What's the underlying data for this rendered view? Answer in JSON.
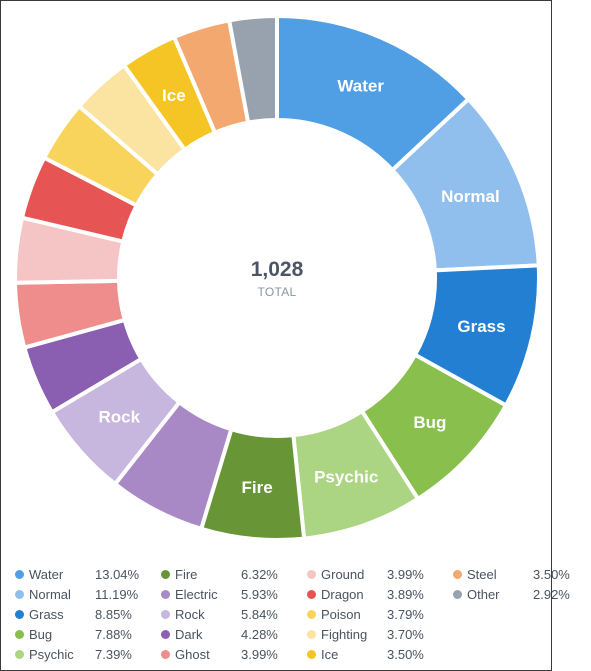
{
  "chart_data": {
    "type": "pie",
    "total_value": "1,028",
    "total_label": "TOTAL",
    "slices": [
      {
        "name": "Water",
        "percent": "13.04%",
        "value": 13.04,
        "color": "#509ee3",
        "show_label": true
      },
      {
        "name": "Normal",
        "percent": "11.19%",
        "value": 11.19,
        "color": "#90bfee",
        "show_label": true
      },
      {
        "name": "Grass",
        "percent": "8.85%",
        "value": 8.85,
        "color": "#227fd2",
        "show_label": true
      },
      {
        "name": "Bug",
        "percent": "7.88%",
        "value": 7.88,
        "color": "#88bf4d",
        "show_label": true
      },
      {
        "name": "Psychic",
        "percent": "7.39%",
        "value": 7.39,
        "color": "#abd582",
        "show_label": true
      },
      {
        "name": "Fire",
        "percent": "6.32%",
        "value": 6.32,
        "color": "#689636",
        "show_label": true
      },
      {
        "name": "Electric",
        "percent": "5.93%",
        "value": 5.93,
        "color": "#a989c5",
        "show_label": false
      },
      {
        "name": "Rock",
        "percent": "5.84%",
        "value": 5.84,
        "color": "#c7b6dd",
        "show_label": true
      },
      {
        "name": "Dark",
        "percent": "4.28%",
        "value": 4.28,
        "color": "#8a5eb0",
        "show_label": false
      },
      {
        "name": "Ghost",
        "percent": "3.99%",
        "value": 3.99,
        "color": "#ef8c8c",
        "show_label": false
      },
      {
        "name": "Ground",
        "percent": "3.99%",
        "value": 3.99,
        "color": "#f5c5c5",
        "show_label": false
      },
      {
        "name": "Dragon",
        "percent": "3.89%",
        "value": 3.89,
        "color": "#e75454",
        "show_label": false
      },
      {
        "name": "Poison",
        "percent": "3.79%",
        "value": 3.79,
        "color": "#f9d45c",
        "show_label": false
      },
      {
        "name": "Fighting",
        "percent": "3.70%",
        "value": 3.7,
        "color": "#fbe4a1",
        "show_label": false
      },
      {
        "name": "Ice",
        "percent": "3.50%",
        "value": 3.5,
        "color": "#f5c526",
        "show_label": true
      },
      {
        "name": "Steel",
        "percent": "3.50%",
        "value": 3.5,
        "color": "#f2a86f",
        "show_label": false
      },
      {
        "name": "Other",
        "percent": "2.92%",
        "value": 2.92,
        "color": "#98a1ae",
        "show_label": false
      }
    ]
  }
}
